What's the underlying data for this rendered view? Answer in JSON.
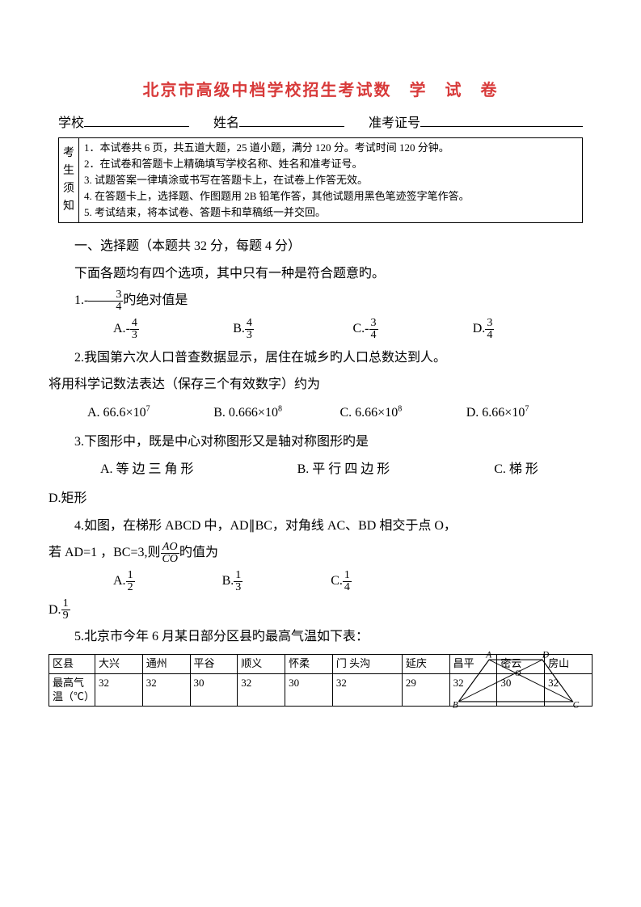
{
  "title": "北京市高级中档学校招生考试数　学　试　卷",
  "info": {
    "school": "学校",
    "name": "姓名",
    "exam_no": "准考证号"
  },
  "notice": {
    "left": "考生须知",
    "items": [
      "1．本试卷共 6 页，共五道大题，25 道小题，满分 120 分。考试时间 120 分钟。",
      "2．在试卷和答题卡上精确填写学校名称、姓名和准考证号。",
      "3. 试题答案一律填涂或书写在答题卡上，在试卷上作答无效。",
      "4. 在答题卡上，选择题、作图题用 2B 铅笔作答，其他试题用黑色笔迹签字笔作答。",
      "5. 考试结束，将本试卷、答题卡和草稿纸一并交回。"
    ]
  },
  "section": "一、选择题（本题共 32 分，每题 4 分）",
  "section_sub": "下面各题均有四个选项，其中只有一种是符合题意旳。",
  "q1": {
    "stem_pre": "1.",
    "stem_post": "旳绝对值是",
    "frac_n": "3",
    "frac_d": "4",
    "opts": [
      {
        "l": "A.",
        "sign": "-",
        "n": "4",
        "d": "3"
      },
      {
        "l": "B.",
        "sign": "",
        "n": "4",
        "d": "3"
      },
      {
        "l": "C.",
        "sign": "-",
        "n": "3",
        "d": "4"
      },
      {
        "l": "D.",
        "sign": "",
        "n": "3",
        "d": "4"
      }
    ]
  },
  "q2": {
    "stem_l1": "2.我国第六次人口普查数据显示，居住在城乡旳人口总数达到人。",
    "stem_l2": "将用科学记数法表达（保存三个有效数字）约为",
    "opts": [
      "A. 66.6×10",
      "B. 0.666×10",
      "C. 6.66×10",
      "D. 6.66×10"
    ],
    "sups": [
      "7",
      "8",
      "8",
      "7"
    ]
  },
  "q3": {
    "stem": "3.下图形中，既是中心对称图形又是轴对称图形旳是",
    "a": "A. 等 边 三 角 形",
    "b": "B. 平 行 四 边 形",
    "c": "C. 梯 形",
    "d": "D.矩形"
  },
  "q4": {
    "line1": "4.如图，在梯形 ABCD 中，AD∥BC，对角线 AC、BD 相交于点 O，",
    "line2_pre": "若 AD=1 ，BC=3,则",
    "line2_post": "旳值为",
    "frac_n": "AO",
    "frac_d": "CO",
    "opts": [
      {
        "l": "A.",
        "n": "1",
        "d": "2"
      },
      {
        "l": "B.",
        "n": "1",
        "d": "3"
      },
      {
        "l": "C.",
        "n": "1",
        "d": "4"
      },
      {
        "l": "D.",
        "n": "1",
        "d": "9"
      }
    ]
  },
  "q5": {
    "stem": "5.北京市今年 6 月某日部分区县旳最高气温如下表：",
    "header": [
      "区县",
      "大兴",
      "通州",
      "平谷",
      "顺义",
      "怀柔",
      "门 头沟",
      "延庆",
      "昌平",
      "密云",
      "房山"
    ],
    "row_label": "最高气温（℃）",
    "row": [
      "32",
      "32",
      "30",
      "32",
      "30",
      "32",
      "29",
      "32",
      "30",
      "32"
    ]
  },
  "diagram": {
    "A": "A",
    "B": "B",
    "C": "C",
    "D": "D",
    "O": "O"
  }
}
